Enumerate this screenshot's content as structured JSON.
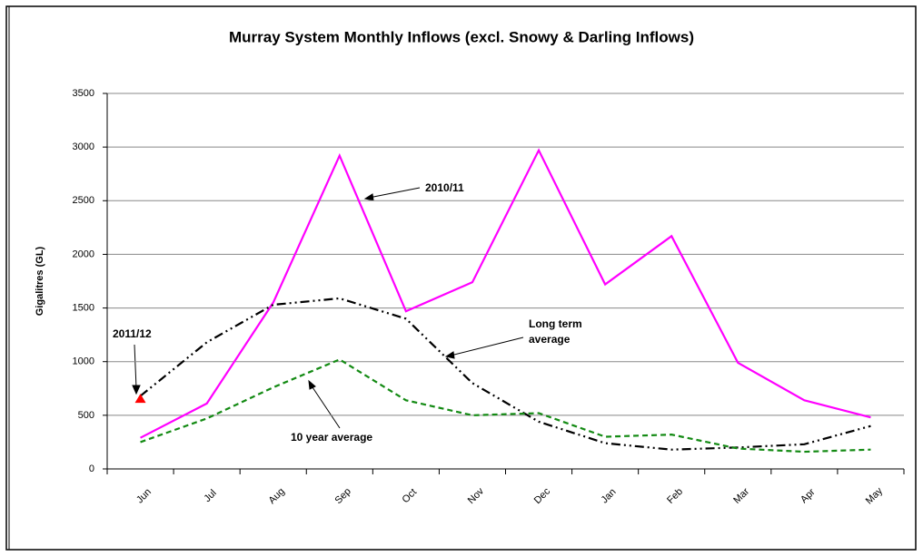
{
  "chart_data": {
    "type": "line",
    "title": "Murray System Monthly Inflows (excl. Snowy & Darling Inflows)",
    "y_label": "Gigalitres (GL)",
    "categories": [
      "Jun",
      "Jul",
      "Aug",
      "Sep",
      "Oct",
      "Nov",
      "Dec",
      "Jan",
      "Feb",
      "Mar",
      "Apr",
      "May"
    ],
    "series": [
      {
        "name": "2010/11",
        "color": "#ff00ff",
        "dash": "solid",
        "values": [
          290,
          610,
          1550,
          2920,
          1470,
          1740,
          2970,
          1720,
          2170,
          990,
          640,
          480
        ]
      },
      {
        "name": "Long term average",
        "color": "#000000",
        "dash": "dashdotdot",
        "values": [
          680,
          1180,
          1530,
          1590,
          1400,
          800,
          440,
          240,
          180,
          200,
          230,
          400
        ]
      },
      {
        "name": "10 year average",
        "color": "#138a13",
        "dash": "dashed",
        "values": [
          250,
          470,
          760,
          1020,
          640,
          500,
          520,
          300,
          320,
          190,
          160,
          180
        ]
      },
      {
        "name": "2011/12",
        "color": "#ff0000",
        "dash": "solid",
        "marker": "triangle",
        "values": [
          650,
          null,
          null,
          null,
          null,
          null,
          null,
          null,
          null,
          null,
          null,
          null
        ]
      }
    ],
    "annotations": [
      "2010/11",
      "Long term",
      "average",
      "10 year average",
      "2011/12"
    ],
    "ylim": [
      0,
      3500
    ],
    "yticks": [
      0,
      500,
      1000,
      1500,
      2000,
      2500,
      3000,
      3500
    ],
    "grid": true
  }
}
